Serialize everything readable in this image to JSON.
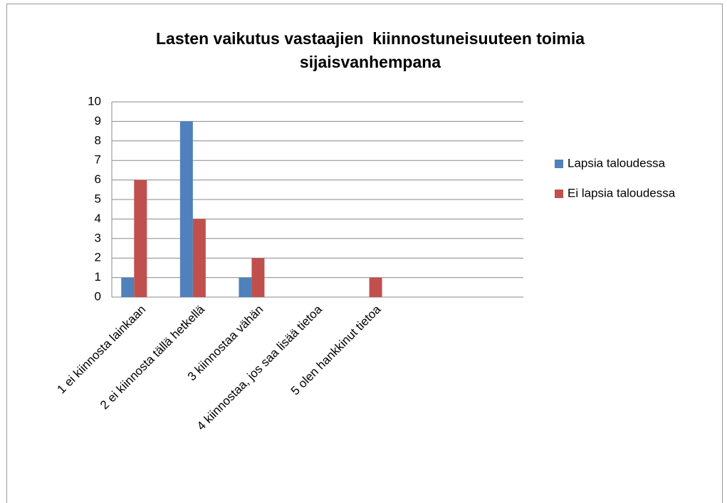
{
  "chart_data": {
    "type": "bar",
    "title": "Lasten vaikutus vastaajien  kiinnostuneisuuteen toimia sijaisvanhempana",
    "categories": [
      "1 ei kiinnosta lainkaan",
      "2 ei kiinnosta tällä hetkellä",
      "3 kiinnostaa vähän",
      "4 kiinnostaa, jos saa lisää tietoa",
      "5 olen hankkinut tietoa",
      null,
      null
    ],
    "series": [
      {
        "name": "Lapsia taloudessa",
        "color": "#4f81bd",
        "values": [
          1,
          9,
          1,
          0,
          0,
          null,
          null
        ]
      },
      {
        "name": "Ei lapsia taloudessa",
        "color": "#c0504d",
        "values": [
          6,
          4,
          2,
          0,
          1,
          null,
          null
        ]
      }
    ],
    "ylim": [
      0,
      10
    ],
    "yticks": [
      0,
      1,
      2,
      3,
      4,
      5,
      6,
      7,
      8,
      9,
      10
    ],
    "grid": true,
    "legend": "right"
  }
}
